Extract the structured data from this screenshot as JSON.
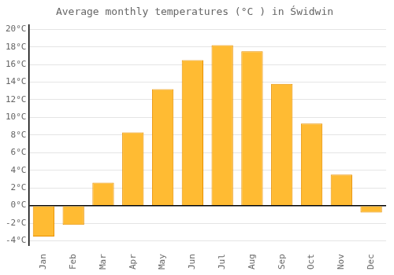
{
  "chart_data": {
    "type": "bar",
    "title": "Average monthly temperatures (°C ) in Świdwin",
    "categories": [
      "Jan",
      "Feb",
      "Mar",
      "Apr",
      "May",
      "Jun",
      "Jul",
      "Aug",
      "Sep",
      "Oct",
      "Nov",
      "Dec"
    ],
    "values": [
      -3.5,
      -2.2,
      2.6,
      8.3,
      13.2,
      16.5,
      18.2,
      17.5,
      13.8,
      9.3,
      3.5,
      -0.8
    ],
    "color": "#FFBB33",
    "ylim": [
      -4.5,
      20.5
    ],
    "yticks": [
      {
        "value": -4,
        "label": "-4°C"
      },
      {
        "value": -2,
        "label": "-2°C"
      },
      {
        "value": 0,
        "label": "0°C"
      },
      {
        "value": 2,
        "label": "2°C"
      },
      {
        "value": 4,
        "label": "4°C"
      },
      {
        "value": 6,
        "label": "6°C"
      },
      {
        "value": 8,
        "label": "8°C"
      },
      {
        "value": 10,
        "label": "10°C"
      },
      {
        "value": 12,
        "label": "12°C"
      },
      {
        "value": 14,
        "label": "14°C"
      },
      {
        "value": 16,
        "label": "16°C"
      },
      {
        "value": 18,
        "label": "18°C"
      },
      {
        "value": 20,
        "label": "20°C"
      }
    ],
    "grid": true
  }
}
